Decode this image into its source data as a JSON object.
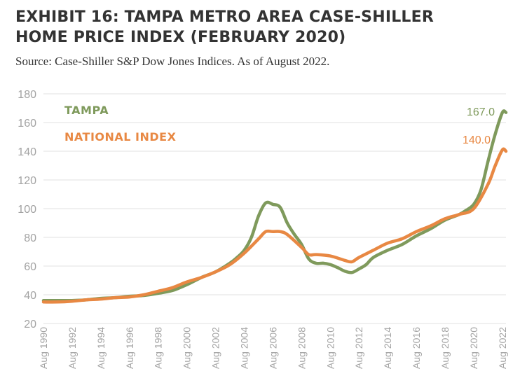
{
  "header": {
    "title_line1": "EXHIBIT 16: TAMPA METRO AREA CASE-SHILLER",
    "title_line2": "HOME PRICE INDEX (FEBRUARY 2020)",
    "source": "Source: Case-Shiller S&P Dow Jones Indices. As of August 2022."
  },
  "chart_data": {
    "type": "line",
    "title": "EXHIBIT 16: TAMPA METRO AREA CASE-SHILLER HOME PRICE INDEX (FEBRUARY 2020)",
    "xlabel": "",
    "ylabel": "",
    "ylim": [
      20,
      180
    ],
    "xlim": [
      "1990-08",
      "2022-11"
    ],
    "yticks": [
      "180",
      "160",
      "140",
      "120",
      "100",
      "80",
      "60",
      "40",
      "20"
    ],
    "xticks": [
      {
        "x": "1990-08",
        "label": "Aug 1990"
      },
      {
        "x": "1992-08",
        "label": "Aug 1992"
      },
      {
        "x": "1994-08",
        "label": "Aug 1994"
      },
      {
        "x": "1996-08",
        "label": "Aug 1996"
      },
      {
        "x": "1998-08",
        "label": "Aug 1998"
      },
      {
        "x": "2000-08",
        "label": "Aug 2000"
      },
      {
        "x": "2002-08",
        "label": "Aug 2002"
      },
      {
        "x": "2004-08",
        "label": "Aug 2004"
      },
      {
        "x": "2006-08",
        "label": "Aug 2006"
      },
      {
        "x": "2008-08",
        "label": "Aug 2008"
      },
      {
        "x": "2010-08",
        "label": "Aug 2010"
      },
      {
        "x": "2012-08",
        "label": "Aug 2012"
      },
      {
        "x": "2014-08",
        "label": "Aug 2014"
      },
      {
        "x": "2016-08",
        "label": "Aug 2016"
      },
      {
        "x": "2018-08",
        "label": "Aug 2018"
      },
      {
        "x": "2020-08",
        "label": "Aug 2020"
      },
      {
        "x": "2022-08",
        "label": "Aug 2022"
      }
    ],
    "grid": "horizontal",
    "legend": "top-left",
    "series": [
      {
        "name": "TAMPA",
        "color": "#7f9a5c",
        "end_label": "167.0",
        "points": [
          [
            "1990-08",
            36
          ],
          [
            "1991-02",
            36
          ],
          [
            "1991-08",
            36
          ],
          [
            "1992-02",
            36
          ],
          [
            "1992-08",
            36
          ],
          [
            "1993-08",
            36.5
          ],
          [
            "1994-08",
            37.5
          ],
          [
            "1995-08",
            38
          ],
          [
            "1996-08",
            39
          ],
          [
            "1997-08",
            39.5
          ],
          [
            "1998-08",
            41
          ],
          [
            "1999-08",
            43
          ],
          [
            "2000-08",
            47
          ],
          [
            "2001-08",
            52
          ],
          [
            "2002-08",
            56
          ],
          [
            "2003-08",
            62
          ],
          [
            "2004-02",
            66
          ],
          [
            "2004-08",
            71
          ],
          [
            "2005-02",
            80
          ],
          [
            "2005-08",
            95
          ],
          [
            "2006-02",
            104
          ],
          [
            "2006-08",
            103
          ],
          [
            "2007-02",
            101
          ],
          [
            "2007-08",
            90
          ],
          [
            "2008-02",
            82
          ],
          [
            "2008-08",
            75
          ],
          [
            "2009-02",
            65
          ],
          [
            "2009-08",
            62
          ],
          [
            "2010-02",
            62
          ],
          [
            "2010-08",
            61
          ],
          [
            "2011-02",
            59
          ],
          [
            "2011-08",
            56.5
          ],
          [
            "2012-02",
            55.5
          ],
          [
            "2012-08",
            58
          ],
          [
            "2013-02",
            61
          ],
          [
            "2013-08",
            66
          ],
          [
            "2014-08",
            71
          ],
          [
            "2015-08",
            75
          ],
          [
            "2016-08",
            81
          ],
          [
            "2017-08",
            86
          ],
          [
            "2018-08",
            92
          ],
          [
            "2019-08",
            96
          ],
          [
            "2020-02",
            99
          ],
          [
            "2020-08",
            103
          ],
          [
            "2021-02",
            113
          ],
          [
            "2021-08",
            133
          ],
          [
            "2022-02",
            152
          ],
          [
            "2022-08",
            167
          ],
          [
            "2022-11",
            167
          ]
        ]
      },
      {
        "name": "NATIONAL INDEX",
        "color": "#e88843",
        "end_label": "140.0",
        "points": [
          [
            "1990-08",
            35
          ],
          [
            "1991-08",
            35
          ],
          [
            "1992-08",
            35.5
          ],
          [
            "1993-08",
            36.5
          ],
          [
            "1994-08",
            37
          ],
          [
            "1995-08",
            38
          ],
          [
            "1996-08",
            38.5
          ],
          [
            "1997-08",
            40
          ],
          [
            "1998-08",
            42.5
          ],
          [
            "1999-08",
            45
          ],
          [
            "2000-08",
            49
          ],
          [
            "2001-08",
            52
          ],
          [
            "2002-08",
            56
          ],
          [
            "2003-08",
            61
          ],
          [
            "2004-08",
            69
          ],
          [
            "2005-08",
            79
          ],
          [
            "2006-02",
            84
          ],
          [
            "2006-08",
            84
          ],
          [
            "2007-02",
            84
          ],
          [
            "2007-08",
            82
          ],
          [
            "2008-08",
            73
          ],
          [
            "2009-02",
            68
          ],
          [
            "2009-08",
            68
          ],
          [
            "2010-08",
            67
          ],
          [
            "2011-08",
            64
          ],
          [
            "2012-02",
            63
          ],
          [
            "2012-08",
            66
          ],
          [
            "2013-08",
            71
          ],
          [
            "2014-08",
            76
          ],
          [
            "2015-08",
            79
          ],
          [
            "2016-08",
            84
          ],
          [
            "2017-08",
            88
          ],
          [
            "2018-08",
            93
          ],
          [
            "2019-08",
            96
          ],
          [
            "2020-08",
            100
          ],
          [
            "2021-08",
            117
          ],
          [
            "2022-02",
            130
          ],
          [
            "2022-08",
            141
          ],
          [
            "2022-11",
            140
          ]
        ]
      }
    ]
  }
}
